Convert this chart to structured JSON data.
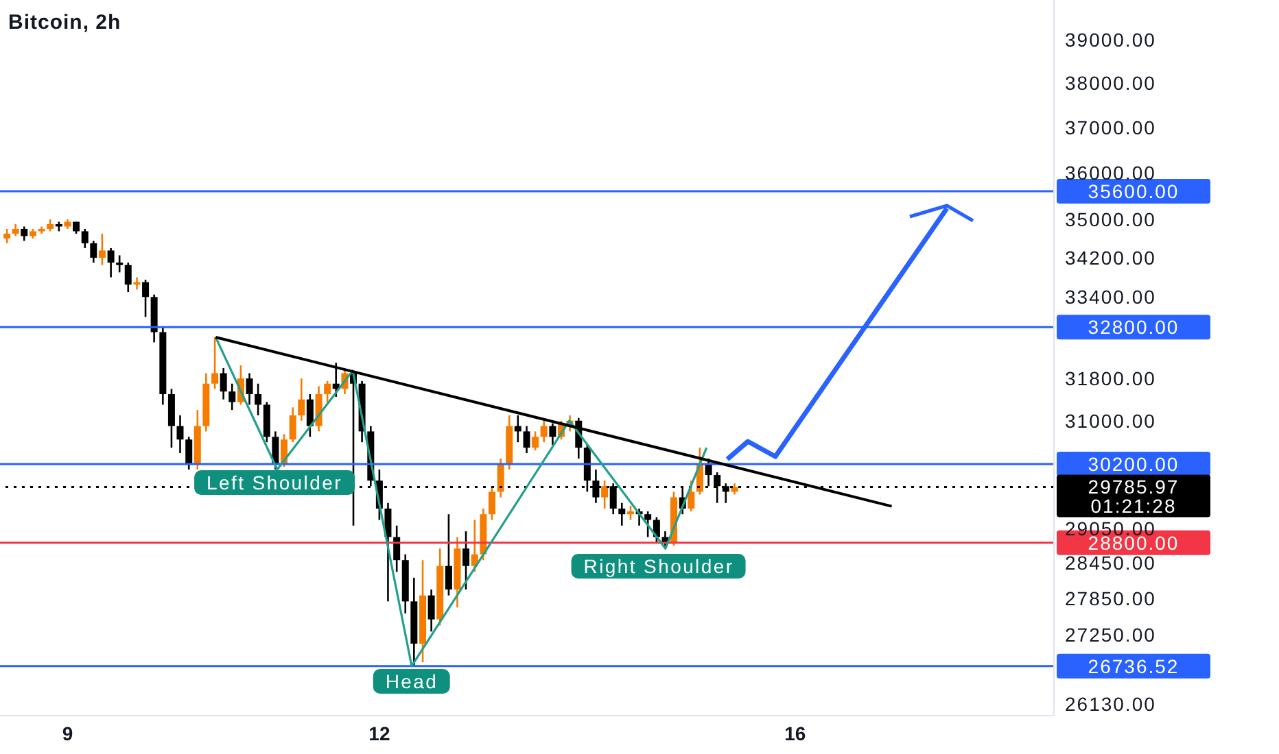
{
  "chart_data": {
    "type": "candlestick",
    "title": "Bitcoin, 2h",
    "xlim": [
      8.35,
      18.49
    ],
    "xticks": [
      {
        "value": 9,
        "label": "9"
      },
      {
        "value": 12,
        "label": "12"
      },
      {
        "value": 16,
        "label": "16"
      }
    ],
    "ylim": [
      25950,
      39950
    ],
    "log": true,
    "yticks": [
      {
        "value": 39000,
        "label": "39000.00"
      },
      {
        "value": 38000,
        "label": "38000.00"
      },
      {
        "value": 37000,
        "label": "37000.00"
      },
      {
        "value": 36000,
        "label": "36000.00"
      },
      {
        "value": 35000,
        "label": "35000.00"
      },
      {
        "value": 34200,
        "label": "34200.00"
      },
      {
        "value": 33400,
        "label": "33400.00"
      },
      {
        "value": 31800,
        "label": "31800.00"
      },
      {
        "value": 31000,
        "label": "31000.00"
      },
      {
        "value": 29050,
        "label": "29050.00"
      },
      {
        "value": 28450,
        "label": "28450.00"
      },
      {
        "value": 27850,
        "label": "27850.00"
      },
      {
        "value": 27250,
        "label": "27250.00"
      },
      {
        "value": 26130,
        "label": "26130.00"
      }
    ],
    "legend": false,
    "marker": "none",
    "series": [
      {
        "x": [
          8.417,
          8.5,
          8.583,
          8.667,
          8.75,
          8.833,
          8.917,
          9,
          9.083,
          9.167,
          9.25,
          9.333,
          9.417,
          9.5,
          9.583,
          9.667,
          9.75,
          9.833,
          9.917,
          10,
          10.083,
          10.167,
          10.25,
          10.333,
          10.417,
          10.5,
          10.583,
          10.667,
          10.75,
          10.833,
          10.917,
          11,
          11.083,
          11.167,
          11.25,
          11.333,
          11.417,
          11.5,
          11.583,
          11.667,
          11.75,
          11.833,
          11.917,
          12,
          12.083,
          12.167,
          12.25,
          12.333,
          12.417,
          12.5,
          12.583,
          12.667,
          12.75,
          12.833,
          12.917,
          13,
          13.083,
          13.167,
          13.25,
          13.333,
          13.417,
          13.5,
          13.583,
          13.667,
          13.75,
          13.833,
          13.917,
          14,
          14.083,
          14.167,
          14.25,
          14.333,
          14.417,
          14.5,
          14.583,
          14.667,
          14.75,
          14.833,
          14.917,
          15,
          15.083,
          15.167,
          15.25,
          15.333,
          15.417
        ],
        "ohlc": [
          [
            34600,
            34800,
            34500,
            34700
          ],
          [
            34700,
            34900,
            34650,
            34800
          ],
          [
            34800,
            34850,
            34550,
            34650
          ],
          [
            34650,
            34800,
            34600,
            34750
          ],
          [
            34750,
            34850,
            34700,
            34800
          ],
          [
            34800,
            35000,
            34750,
            34900
          ],
          [
            34900,
            34950,
            34750,
            34850
          ],
          [
            34850,
            35000,
            34800,
            34950
          ],
          [
            34950,
            34950,
            34700,
            34750
          ],
          [
            34750,
            34800,
            34400,
            34500
          ],
          [
            34500,
            34550,
            34100,
            34200
          ],
          [
            34200,
            34700,
            34050,
            34350
          ],
          [
            34350,
            34400,
            33800,
            34100
          ],
          [
            34100,
            34250,
            33900,
            34050
          ],
          [
            34050,
            34100,
            33500,
            33650
          ],
          [
            33650,
            33800,
            33550,
            33700
          ],
          [
            33700,
            33750,
            33000,
            33400
          ],
          [
            33400,
            33450,
            32500,
            32700
          ],
          [
            32700,
            32800,
            31300,
            31500
          ],
          [
            31500,
            31600,
            30500,
            30900
          ],
          [
            30900,
            31100,
            30400,
            30650
          ],
          [
            30650,
            30700,
            30100,
            30200
          ],
          [
            30200,
            31200,
            30100,
            30900
          ],
          [
            30900,
            31900,
            30800,
            31700
          ],
          [
            31700,
            32600,
            31600,
            31900
          ],
          [
            31900,
            32000,
            31400,
            31550
          ],
          [
            31550,
            31700,
            31200,
            31350
          ],
          [
            31350,
            32050,
            31300,
            31800
          ],
          [
            31800,
            31900,
            31300,
            31500
          ],
          [
            31500,
            31700,
            31100,
            31300
          ],
          [
            31300,
            31350,
            30600,
            30700
          ],
          [
            30700,
            30800,
            30100,
            30200
          ],
          [
            30200,
            30750,
            30150,
            30650
          ],
          [
            30650,
            31250,
            30600,
            31100
          ],
          [
            31100,
            31800,
            31000,
            31400
          ],
          [
            31400,
            31500,
            30700,
            30900
          ],
          [
            30900,
            31650,
            30800,
            31500
          ],
          [
            31500,
            31750,
            31300,
            31700
          ],
          [
            31700,
            32100,
            31450,
            31600
          ],
          [
            31600,
            32000,
            31500,
            31900
          ],
          [
            31900,
            31950,
            29100,
            31700
          ],
          [
            31700,
            31750,
            30600,
            30800
          ],
          [
            30800,
            30900,
            29800,
            29900
          ],
          [
            29900,
            30100,
            29200,
            29400
          ],
          [
            29400,
            29500,
            27800,
            28900
          ],
          [
            28900,
            29100,
            28300,
            28500
          ],
          [
            28500,
            28600,
            27600,
            27800
          ],
          [
            27800,
            28200,
            26737,
            27100
          ],
          [
            27100,
            28500,
            26800,
            27900
          ],
          [
            27900,
            28000,
            27300,
            27500
          ],
          [
            27500,
            28700,
            27400,
            28400
          ],
          [
            28400,
            29300,
            27900,
            28000
          ],
          [
            28000,
            28900,
            27700,
            28700
          ],
          [
            28700,
            29000,
            28000,
            28400
          ],
          [
            28400,
            29200,
            28300,
            28600
          ],
          [
            28600,
            29400,
            28500,
            29300
          ],
          [
            29300,
            29800,
            29200,
            29700
          ],
          [
            29700,
            30300,
            29600,
            30200
          ],
          [
            30200,
            31100,
            30100,
            30900
          ],
          [
            30900,
            31100,
            30600,
            30800
          ],
          [
            30800,
            30900,
            30400,
            30500
          ],
          [
            30500,
            30800,
            30450,
            30700
          ],
          [
            30700,
            31000,
            30600,
            30900
          ],
          [
            30900,
            30950,
            30550,
            30700
          ],
          [
            30700,
            31000,
            30650,
            30950
          ],
          [
            30950,
            31100,
            30800,
            31000
          ],
          [
            31000,
            31050,
            30300,
            30500
          ],
          [
            30500,
            30550,
            29700,
            29900
          ],
          [
            29900,
            30100,
            29500,
            29600
          ],
          [
            29600,
            29900,
            29400,
            29800
          ],
          [
            29800,
            29850,
            29300,
            29400
          ],
          [
            29400,
            29500,
            29100,
            29300
          ],
          [
            29300,
            29450,
            29200,
            29350
          ],
          [
            29350,
            29400,
            29100,
            29300
          ],
          [
            29300,
            29350,
            28900,
            29200
          ],
          [
            29200,
            29250,
            28800,
            28900
          ],
          [
            28900,
            29000,
            28700,
            28800
          ],
          [
            28800,
            29700,
            28750,
            29600
          ],
          [
            29600,
            29800,
            29300,
            29400
          ],
          [
            29400,
            29900,
            29350,
            29700
          ],
          [
            29700,
            30500,
            29650,
            30200
          ],
          [
            30200,
            30300,
            29800,
            30000
          ],
          [
            30000,
            30050,
            29500,
            29800
          ],
          [
            29800,
            29850,
            29500,
            29700
          ],
          [
            29700,
            29850,
            29650,
            29786
          ]
        ],
        "colors": [
          "#f57c00",
          "#f57c00",
          "#000000",
          "#f57c00",
          "#f57c00",
          "#f57c00",
          "#000000",
          "#f57c00",
          "#000000",
          "#000000",
          "#000000",
          "#f57c00",
          "#000000",
          "#000000",
          "#000000",
          "#f57c00",
          "#000000",
          "#000000",
          "#000000",
          "#000000",
          "#000000",
          "#000000",
          "#f57c00",
          "#f57c00",
          "#f57c00",
          "#000000",
          "#000000",
          "#f57c00",
          "#000000",
          "#000000",
          "#000000",
          "#000000",
          "#f57c00",
          "#f57c00",
          "#f57c00",
          "#000000",
          "#f57c00",
          "#f57c00",
          "#000000",
          "#f57c00",
          "#000000",
          "#000000",
          "#000000",
          "#000000",
          "#000000",
          "#000000",
          "#000000",
          "#000000",
          "#f57c00",
          "#000000",
          "#f57c00",
          "#000000",
          "#f57c00",
          "#000000",
          "#f57c00",
          "#f57c00",
          "#f57c00",
          "#f57c00",
          "#f57c00",
          "#000000",
          "#000000",
          "#f57c00",
          "#f57c00",
          "#000000",
          "#f57c00",
          "#f57c00",
          "#000000",
          "#000000",
          "#000000",
          "#f57c00",
          "#000000",
          "#000000",
          "#f57c00",
          "#000000",
          "#000000",
          "#000000",
          "#000000",
          "#f57c00",
          "#000000",
          "#f57c00",
          "#f57c00",
          "#000000",
          "#000000",
          "#000000",
          "#f57c00"
        ]
      },
      {
        "type": "line",
        "color": "#22a08c",
        "x": [
          10.425,
          11.018,
          11.744,
          12.311,
          13.828,
          14.752,
          15.148
        ],
        "values": [
          32600,
          30100,
          31950,
          26737,
          31000,
          28700,
          30500
        ]
      },
      {
        "type": "line",
        "color": "#000000",
        "x": [
          10.425,
          16.929
        ],
        "values": [
          32600,
          29440
        ]
      }
    ],
    "ref_lines": [
      {
        "axis": "y",
        "value": 35600,
        "label": "35600.00",
        "color": "#2962ff"
      },
      {
        "axis": "y",
        "value": 32800,
        "label": "32800.00",
        "color": "#2962ff"
      },
      {
        "axis": "y",
        "value": 30200,
        "label": "30200.00",
        "color": "#2962ff"
      },
      {
        "axis": "y",
        "value": 29785.97,
        "label": "29785.97",
        "color": "#000000",
        "line_style": "dotted"
      },
      {
        "axis": "y",
        "value": 28800,
        "label": "28800.00",
        "color": "#f23645"
      },
      {
        "axis": "y",
        "value": 26736.52,
        "label": "26736.52",
        "color": "#2962ff"
      }
    ],
    "annotations": [
      "Left Shoulder",
      "Head",
      "Right Shoulder",
      "01:21:28"
    ]
  }
}
